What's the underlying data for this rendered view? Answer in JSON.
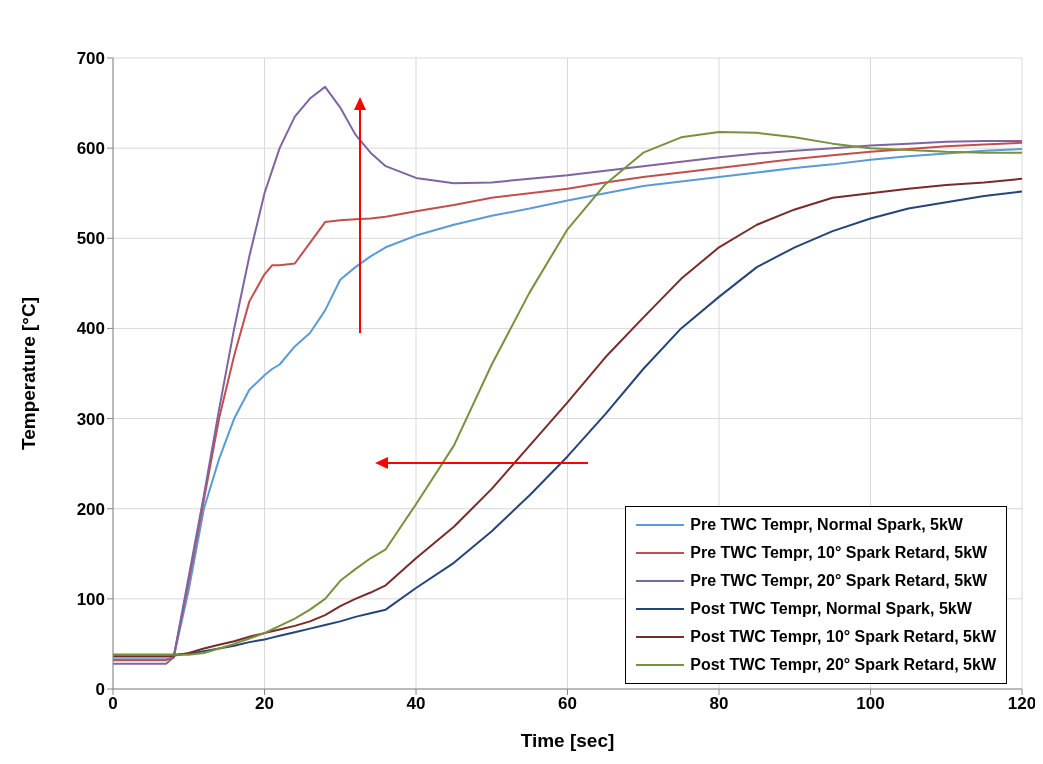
{
  "chart_data": {
    "type": "line",
    "xlabel": "Time [sec]",
    "ylabel": "Temperature [°C]",
    "x": [
      0,
      7,
      8,
      10,
      12,
      14,
      16,
      18,
      20,
      21,
      22,
      24,
      26,
      28,
      30,
      32,
      34,
      36,
      40,
      45,
      50,
      55,
      60,
      65,
      70,
      75,
      80,
      85,
      90,
      95,
      100,
      105,
      110,
      115,
      120
    ],
    "series": [
      {
        "name": "Pre TWC Tempr, Normal Spark, 5kW",
        "color": "#5b9bd5",
        "values": [
          33,
          33,
          35,
          110,
          200,
          255,
          300,
          332,
          348,
          355,
          360,
          380,
          395,
          420,
          454,
          468,
          480,
          490,
          503,
          515,
          525,
          533,
          542,
          550,
          558,
          563,
          568,
          573,
          578,
          582,
          587,
          591,
          594,
          597,
          599
        ]
      },
      {
        "name": "Pre TWC Tempr, 10° Spark Retard, 5kW",
        "color": "#c0504d",
        "values": [
          32,
          32,
          35,
          120,
          210,
          300,
          370,
          430,
          460,
          470,
          470,
          472,
          495,
          518,
          520,
          521,
          522,
          524,
          530,
          537,
          545,
          550,
          555,
          562,
          568,
          573,
          578,
          583,
          588,
          592,
          596,
          599,
          602,
          604,
          606
        ]
      },
      {
        "name": "Pre TWC Tempr, 20° Spark Retard, 5kW",
        "color": "#8064a2",
        "values": [
          28,
          28,
          35,
          125,
          215,
          310,
          400,
          480,
          550,
          575,
          600,
          635,
          655,
          668,
          645,
          615,
          595,
          580,
          567,
          561,
          562,
          566,
          570,
          575,
          580,
          585,
          590,
          594,
          597,
          600,
          603,
          605,
          607,
          608,
          608
        ]
      },
      {
        "name": "Post TWC Tempr, Normal Spark, 5kW",
        "color": "#264478",
        "values": [
          38,
          38,
          38,
          39,
          42,
          45,
          48,
          52,
          55,
          57,
          59,
          63,
          67,
          71,
          75,
          80,
          84,
          88,
          112,
          140,
          175,
          215,
          258,
          305,
          355,
          400,
          435,
          468,
          490,
          508,
          522,
          533,
          540,
          547,
          552
        ]
      },
      {
        "name": "Post TWC Tempr, 10° Spark Retard, 5kW",
        "color": "#772c2a",
        "values": [
          36,
          36,
          37,
          40,
          45,
          49,
          53,
          58,
          62,
          64,
          66,
          70,
          75,
          82,
          92,
          100,
          107,
          115,
          145,
          180,
          222,
          270,
          318,
          368,
          412,
          455,
          490,
          515,
          532,
          545,
          550,
          555,
          559,
          562,
          566
        ]
      },
      {
        "name": "Post TWC Tempr, 20° Spark Retard, 5kW",
        "color": "#76923c",
        "values": [
          38,
          38,
          38,
          38,
          40,
          45,
          50,
          56,
          62,
          66,
          70,
          78,
          88,
          100,
          120,
          133,
          145,
          155,
          205,
          270,
          360,
          440,
          510,
          560,
          595,
          612,
          618,
          617,
          612,
          605,
          600,
          598,
          596,
          595,
          595
        ]
      }
    ],
    "xlim": [
      0,
      120
    ],
    "xticks": [
      0,
      20,
      40,
      60,
      80,
      100,
      120
    ],
    "ylim": [
      0,
      700
    ],
    "yticks": [
      0,
      100,
      200,
      300,
      400,
      500,
      600,
      700
    ],
    "grid": true,
    "legend": "bottom right",
    "marker": "none",
    "line_style": "solid"
  }
}
